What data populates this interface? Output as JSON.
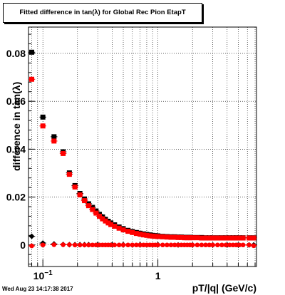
{
  "title": "Fitted difference in tan(λ) for Global Rec Pion EtapT",
  "ylabel": "difference in tan(λ)",
  "xlabel": "pT/|q| (GeV/c)",
  "timestamp": "Wed Aug 23 14:17:38 2017",
  "colors": {
    "series_black": "#000000",
    "series_red": "#ff0000",
    "grid": "#000000"
  },
  "chart_data": {
    "type": "scatter",
    "x_scale": "log",
    "xlim": [
      0.075,
      7.2
    ],
    "ylim": [
      -0.009,
      0.091
    ],
    "grid": true,
    "legend": "none",
    "x_ticks": [
      {
        "value": 0.1,
        "label": "10",
        "exp": "−1"
      },
      {
        "value": 1,
        "label": "1",
        "exp": ""
      }
    ],
    "y_ticks": [
      {
        "value": 0,
        "label": "0"
      },
      {
        "value": 0.02,
        "label": "0.02"
      },
      {
        "value": 0.04,
        "label": "0.04"
      },
      {
        "value": 0.06,
        "label": "0.06"
      },
      {
        "value": 0.08,
        "label": "0.08"
      }
    ],
    "series": [
      {
        "marker": "square",
        "color": "#000000",
        "x": [
          0.08,
          0.1,
          0.125,
          0.15,
          0.17,
          0.19,
          0.21,
          0.23,
          0.25,
          0.27,
          0.29,
          0.31,
          0.33,
          0.35,
          0.37,
          0.39,
          0.42,
          0.46,
          0.5,
          0.55,
          0.6,
          0.65,
          0.7,
          0.75,
          0.8,
          0.85,
          0.9,
          0.95,
          1.0,
          1.1,
          1.2,
          1.3,
          1.4,
          1.5,
          1.6,
          1.7,
          1.8,
          1.9,
          2.0,
          2.2,
          2.4,
          2.6,
          2.8,
          3.0,
          3.3,
          3.6,
          3.9,
          4.2,
          4.5,
          4.8,
          5.1,
          5.5,
          6.2,
          6.8
        ],
        "y": [
          0.0805,
          0.0534,
          0.0452,
          0.0389,
          0.0301,
          0.0248,
          0.0215,
          0.0192,
          0.0172,
          0.0157,
          0.0142,
          0.0128,
          0.0117,
          0.0107,
          0.0099,
          0.0092,
          0.0084,
          0.0075,
          0.0068,
          0.0061,
          0.0056,
          0.0052,
          0.0049,
          0.0046,
          0.0044,
          0.0042,
          0.004,
          0.0039,
          0.0038,
          0.0036,
          0.0035,
          0.0034,
          0.0034,
          0.0033,
          0.0033,
          0.0032,
          0.0032,
          0.0032,
          0.0031,
          0.0031,
          0.0031,
          0.003,
          0.003,
          0.003,
          0.003,
          0.003,
          0.003,
          0.003,
          0.003,
          0.003,
          0.003,
          0.003,
          0.003,
          0.003
        ]
      },
      {
        "marker": "square",
        "color": "#ff0000",
        "x": [
          0.08,
          0.1,
          0.125,
          0.15,
          0.17,
          0.19,
          0.21,
          0.23,
          0.25,
          0.27,
          0.29,
          0.31,
          0.33,
          0.35,
          0.37,
          0.39,
          0.42,
          0.46,
          0.5,
          0.55,
          0.6,
          0.65,
          0.7,
          0.75,
          0.8,
          0.85,
          0.9,
          0.95,
          1.0,
          1.1,
          1.2,
          1.3,
          1.4,
          1.5,
          1.6,
          1.7,
          1.8,
          1.9,
          2.0,
          2.2,
          2.4,
          2.6,
          2.8,
          3.0,
          3.3,
          3.6,
          3.9,
          4.2,
          4.5,
          4.8,
          5.1,
          5.5,
          6.2,
          6.8
        ],
        "y": [
          0.0692,
          0.0497,
          0.0434,
          0.0382,
          0.0295,
          0.0242,
          0.0209,
          0.0185,
          0.0164,
          0.0148,
          0.0133,
          0.012,
          0.0109,
          0.01,
          0.0092,
          0.0085,
          0.0078,
          0.007,
          0.0063,
          0.0057,
          0.0052,
          0.0048,
          0.0045,
          0.0042,
          0.004,
          0.0038,
          0.0037,
          0.0036,
          0.0035,
          0.0034,
          0.0033,
          0.0032,
          0.0032,
          0.0031,
          0.0031,
          0.003,
          0.003,
          0.003,
          0.003,
          0.003,
          0.0029,
          0.0029,
          0.0029,
          0.0029,
          0.0029,
          0.0029,
          0.0029,
          0.0029,
          0.0029,
          0.0029,
          0.0029,
          0.0029,
          0.0029,
          0.0029
        ]
      },
      {
        "marker": "diamond",
        "color": "#000000",
        "x": [
          0.08,
          0.1,
          0.125,
          0.15,
          0.17,
          0.19,
          0.21,
          0.23,
          0.25,
          0.3,
          0.4,
          0.5,
          0.7,
          1.0,
          1.5,
          2.0,
          3.0,
          4.0,
          5.0,
          6.2,
          6.8
        ],
        "y": [
          0.0036,
          0.0008,
          0.0004,
          0.0002,
          0.0001,
          0.0001,
          0.0001,
          0.0001,
          0.0001,
          0.0001,
          0.0001,
          0.0001,
          0.0001,
          0.0001,
          0.0,
          0.0,
          0.0,
          0.0,
          0.0,
          0.0,
          0.0
        ]
      },
      {
        "marker": "circle",
        "color": "#ff0000",
        "x": [
          0.08,
          0.1,
          0.125,
          0.15,
          0.17,
          0.19,
          0.21,
          0.23,
          0.25,
          0.27,
          0.29,
          0.31,
          0.33,
          0.35,
          0.37,
          0.39,
          0.42,
          0.46,
          0.5,
          0.55,
          0.6,
          0.65,
          0.7,
          0.75,
          0.8,
          0.85,
          0.9,
          0.95,
          1.0,
          1.1,
          1.2,
          1.3,
          1.4,
          1.5,
          1.6,
          1.7,
          1.8,
          1.9,
          2.0,
          2.2,
          2.4,
          2.6,
          2.8,
          3.0,
          3.3,
          3.6,
          3.9,
          4.2,
          4.5,
          4.8,
          5.1,
          5.5,
          6.2,
          6.8
        ],
        "y": [
          -0.0004,
          0.0,
          0.0001,
          0.0001,
          0.0001,
          0.0,
          0.0,
          0.0,
          0.0,
          0.0,
          0.0,
          0.0,
          0.0,
          0.0,
          0.0,
          0.0,
          0.0,
          0.0,
          0.0,
          0.0,
          0.0,
          0.0,
          0.0,
          0.0,
          0.0,
          0.0,
          0.0,
          0.0,
          0.0,
          0.0,
          0.0,
          0.0,
          0.0,
          0.0,
          0.0,
          0.0,
          0.0,
          0.0,
          0.0,
          0.0,
          0.0,
          0.0,
          0.0,
          0.0,
          0.0,
          0.0,
          0.0,
          0.0,
          0.0,
          0.0,
          0.0,
          0.0,
          0.0,
          -0.0003
        ]
      }
    ]
  }
}
